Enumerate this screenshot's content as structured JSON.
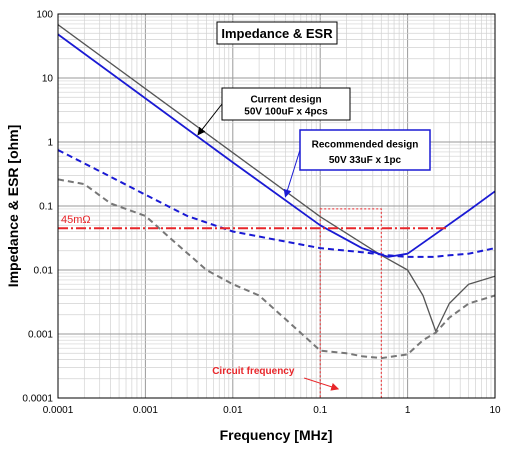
{
  "chart_data": {
    "type": "line",
    "title": "Impedance & ESR",
    "xlabel": "Frequency [MHz]",
    "ylabel": "Impedance & ESR [ohm]",
    "x_scale": "log",
    "y_scale": "log",
    "xlim": [
      0.0001,
      10
    ],
    "ylim": [
      0.0001,
      100
    ],
    "grid": true,
    "x_tick_labels": [
      "0.0001",
      "0.001",
      "0.01",
      "0.1",
      "1",
      "10"
    ],
    "y_tick_labels": [
      "0.0001",
      "0.001",
      "0.01",
      "0.1",
      "1",
      "10",
      "100"
    ],
    "series": [
      {
        "name": "Current design 50V 100uF x 4pcs",
        "kind": "impedance",
        "color": "#555555",
        "style": "solid",
        "points": [
          [
            0.0001,
            68
          ],
          [
            0.001,
            6.8
          ],
          [
            0.01,
            0.68
          ],
          [
            0.1,
            0.068
          ],
          [
            0.5,
            0.017
          ],
          [
            1,
            0.01
          ],
          [
            1.5,
            0.004
          ],
          [
            2.1,
            0.0011
          ],
          [
            3,
            0.003
          ],
          [
            5,
            0.006
          ],
          [
            10,
            0.008
          ]
        ]
      },
      {
        "name": "Recommended design 50V 33uF x 1pc",
        "kind": "impedance",
        "color": "#1a1ad4",
        "style": "solid",
        "points": [
          [
            0.0001,
            48
          ],
          [
            0.001,
            4.8
          ],
          [
            0.01,
            0.48
          ],
          [
            0.1,
            0.05
          ],
          [
            0.3,
            0.022
          ],
          [
            0.6,
            0.016
          ],
          [
            1,
            0.018
          ],
          [
            2,
            0.035
          ],
          [
            5,
            0.085
          ],
          [
            10,
            0.17
          ]
        ]
      },
      {
        "name": "Recommended design ESR",
        "kind": "ESR",
        "color": "#1a1ad4",
        "style": "dashed",
        "points": [
          [
            0.0001,
            0.75
          ],
          [
            0.0003,
            0.35
          ],
          [
            0.001,
            0.15
          ],
          [
            0.003,
            0.07
          ],
          [
            0.01,
            0.04
          ],
          [
            0.03,
            0.03
          ],
          [
            0.1,
            0.022
          ],
          [
            0.3,
            0.019
          ],
          [
            0.6,
            0.017
          ],
          [
            1,
            0.016
          ],
          [
            2,
            0.016
          ],
          [
            3,
            0.017
          ],
          [
            5,
            0.018
          ],
          [
            10,
            0.022
          ]
        ]
      },
      {
        "name": "Current design ESR",
        "kind": "ESR",
        "color": "#777777",
        "style": "dashed",
        "points": [
          [
            0.0001,
            0.26
          ],
          [
            0.0002,
            0.22
          ],
          [
            0.0004,
            0.11
          ],
          [
            0.001,
            0.07
          ],
          [
            0.002,
            0.03
          ],
          [
            0.005,
            0.01
          ],
          [
            0.01,
            0.006
          ],
          [
            0.02,
            0.004
          ],
          [
            0.05,
            0.0013
          ],
          [
            0.1,
            0.00055
          ],
          [
            0.2,
            0.0005
          ],
          [
            0.3,
            0.00045
          ],
          [
            0.5,
            0.00042
          ],
          [
            1,
            0.00048
          ],
          [
            1.5,
            0.0008
          ],
          [
            2.1,
            0.00105
          ],
          [
            3,
            0.0018
          ],
          [
            5,
            0.003
          ],
          [
            10,
            0.004
          ]
        ]
      }
    ],
    "reference_line": {
      "label": "45mΩ",
      "value": 0.045,
      "color": "#e8262a",
      "style": "dash-dot"
    },
    "annotations": [
      {
        "id": "current",
        "lines": [
          "Current design",
          "50V 100uF x 4pcs"
        ],
        "target": [
          0.004,
          1.3
        ],
        "border": "#000000"
      },
      {
        "id": "recommended",
        "lines": [
          "Recommended design",
          "50V 33uF x 1pc"
        ],
        "target": [
          0.04,
          0.14
        ],
        "border": "#1a1ad4"
      }
    ],
    "highlight_region": {
      "label": "Circuit frequency",
      "x_range": [
        0.1,
        0.5
      ],
      "y_top": 0.09,
      "color": "#e8262a"
    }
  }
}
